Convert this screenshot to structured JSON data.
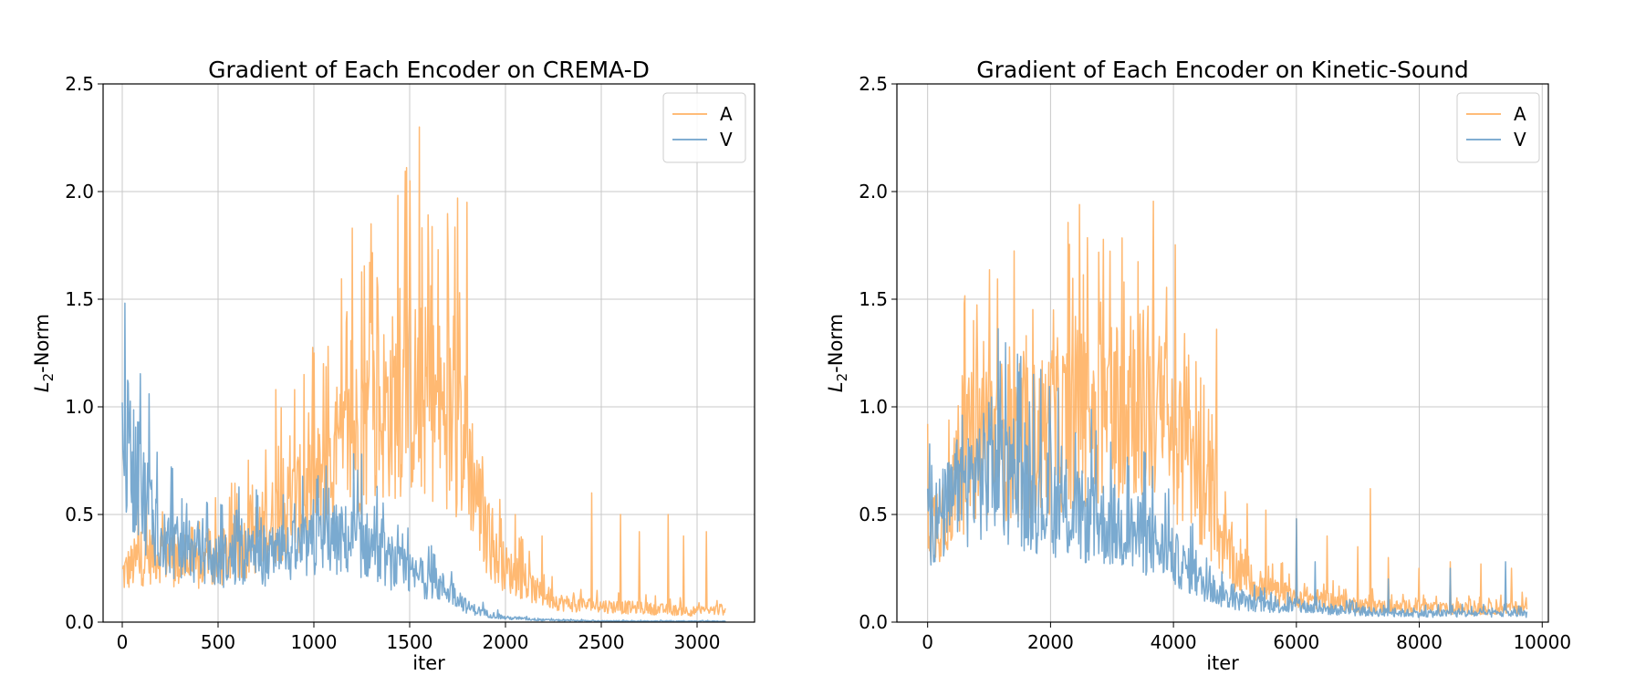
{
  "colors": {
    "A": "#ffb366",
    "V": "#6fa3cc",
    "grid": "#c8c8c8",
    "axis": "#000000"
  },
  "chart_data": [
    {
      "type": "line",
      "title": "Gradient of Each Encoder on CREMA-D",
      "xlabel": "iter",
      "ylabel_main": "L",
      "ylabel_sub": "2",
      "ylabel_rest": "-Norm",
      "xlim": [
        -100,
        3300
      ],
      "ylim": [
        0,
        2.5
      ],
      "xticks": [
        0,
        500,
        1000,
        1500,
        2000,
        2500,
        3000
      ],
      "xtick_labels": [
        "0",
        "500",
        "1000",
        "1500",
        "2000",
        "2500",
        "3000"
      ],
      "yticks": [
        0,
        0.5,
        1.0,
        1.5,
        2.0,
        2.5
      ],
      "ytick_labels": [
        "0.0",
        "0.5",
        "1.0",
        "1.5",
        "2.0",
        "2.5"
      ],
      "grid": true,
      "legend_position": "top-right",
      "x_max": 3150,
      "series": [
        {
          "name": "A",
          "color": "#ffb366",
          "shape": [
            [
              0,
              0.22
            ],
            [
              100,
              0.3
            ],
            [
              200,
              0.33
            ],
            [
              300,
              0.28
            ],
            [
              400,
              0.25
            ],
            [
              500,
              0.28
            ],
            [
              600,
              0.33
            ],
            [
              700,
              0.4
            ],
            [
              800,
              0.48
            ],
            [
              900,
              0.55
            ],
            [
              1000,
              0.62
            ],
            [
              1100,
              0.7
            ],
            [
              1200,
              0.85
            ],
            [
              1300,
              0.95
            ],
            [
              1400,
              1.0
            ],
            [
              1500,
              1.05
            ],
            [
              1600,
              1.02
            ],
            [
              1700,
              0.95
            ],
            [
              1800,
              0.8
            ],
            [
              1850,
              0.6
            ],
            [
              1900,
              0.4
            ],
            [
              1950,
              0.3
            ],
            [
              2000,
              0.25
            ],
            [
              2100,
              0.18
            ],
            [
              2200,
              0.12
            ],
            [
              2300,
              0.09
            ],
            [
              2400,
              0.08
            ],
            [
              2600,
              0.07
            ],
            [
              2800,
              0.06
            ],
            [
              3000,
              0.05
            ],
            [
              3150,
              0.06
            ]
          ],
          "spikes": [
            [
              1500,
              2.05
            ],
            [
              1550,
              2.3
            ],
            [
              1600,
              1.62
            ],
            [
              1650,
              1.73
            ],
            [
              1700,
              1.7
            ],
            [
              1750,
              1.97
            ],
            [
              1800,
              1.95
            ],
            [
              1200,
              1.83
            ],
            [
              1300,
              1.85
            ],
            [
              1330,
              1.6
            ],
            [
              1450,
              1.55
            ],
            [
              1050,
              1.2
            ],
            [
              1000,
              1.25
            ],
            [
              950,
              1.15
            ],
            [
              900,
              1.08
            ],
            [
              800,
              1.08
            ],
            [
              750,
              0.8
            ],
            [
              2050,
              0.5
            ],
            [
              2190,
              0.4
            ],
            [
              2450,
              0.6
            ],
            [
              2600,
              0.5
            ],
            [
              2700,
              0.42
            ],
            [
              2850,
              0.5
            ],
            [
              2930,
              0.4
            ],
            [
              3050,
              0.42
            ]
          ]
        },
        {
          "name": "V",
          "color": "#6fa3cc",
          "shape": [
            [
              0,
              0.82
            ],
            [
              50,
              0.75
            ],
            [
              100,
              0.6
            ],
            [
              150,
              0.52
            ],
            [
              200,
              0.4
            ],
            [
              300,
              0.33
            ],
            [
              400,
              0.3
            ],
            [
              500,
              0.28
            ],
            [
              600,
              0.3
            ],
            [
              700,
              0.3
            ],
            [
              800,
              0.3
            ],
            [
              900,
              0.33
            ],
            [
              1000,
              0.35
            ],
            [
              1100,
              0.38
            ],
            [
              1200,
              0.38
            ],
            [
              1300,
              0.35
            ],
            [
              1400,
              0.27
            ],
            [
              1500,
              0.22
            ],
            [
              1600,
              0.19
            ],
            [
              1700,
              0.15
            ],
            [
              1750,
              0.12
            ],
            [
              1800,
              0.07
            ],
            [
              1900,
              0.04
            ],
            [
              2000,
              0.02
            ],
            [
              2100,
              0.015
            ],
            [
              2200,
              0.01
            ],
            [
              2500,
              0.005
            ],
            [
              3150,
              0.004
            ]
          ],
          "spikes": [
            [
              0,
              1.02
            ],
            [
              40,
              0.92
            ],
            [
              80,
              0.93
            ],
            [
              140,
              1.06
            ],
            [
              220,
              0.5
            ],
            [
              350,
              0.47
            ],
            [
              600,
              0.52
            ],
            [
              900,
              0.55
            ],
            [
              1050,
              0.62
            ],
            [
              1250,
              0.78
            ],
            [
              1330,
              0.63
            ],
            [
              1440,
              0.45
            ]
          ]
        }
      ]
    },
    {
      "type": "line",
      "title": "Gradient of Each Encoder on Kinetic-Sound",
      "xlabel": "iter",
      "ylabel_main": "L",
      "ylabel_sub": "2",
      "ylabel_rest": "-Norm",
      "xlim": [
        -500,
        10100
      ],
      "ylim": [
        0,
        2.5
      ],
      "xticks": [
        0,
        2000,
        4000,
        6000,
        8000,
        10000
      ],
      "xtick_labels": [
        "0",
        "2000",
        "4000",
        "6000",
        "8000",
        "10000"
      ],
      "yticks": [
        0,
        0.5,
        1.0,
        1.5,
        2.0,
        2.5
      ],
      "ytick_labels": [
        "0.0",
        "0.5",
        "1.0",
        "1.5",
        "2.0",
        "2.5"
      ],
      "grid": true,
      "legend_position": "top-right",
      "x_max": 9750,
      "series": [
        {
          "name": "A",
          "color": "#ffb366",
          "shape": [
            [
              0,
              0.5
            ],
            [
              100,
              0.45
            ],
            [
              200,
              0.5
            ],
            [
              400,
              0.6
            ],
            [
              600,
              0.75
            ],
            [
              800,
              0.85
            ],
            [
              1000,
              0.88
            ],
            [
              1200,
              0.85
            ],
            [
              1500,
              0.82
            ],
            [
              1800,
              0.85
            ],
            [
              2000,
              0.9
            ],
            [
              2300,
              0.93
            ],
            [
              2600,
              0.97
            ],
            [
              3000,
              1.0
            ],
            [
              3300,
              1.05
            ],
            [
              3600,
              1.0
            ],
            [
              3900,
              0.9
            ],
            [
              4200,
              0.75
            ],
            [
              4500,
              0.55
            ],
            [
              4800,
              0.38
            ],
            [
              5000,
              0.25
            ],
            [
              5300,
              0.18
            ],
            [
              5600,
              0.14
            ],
            [
              6000,
              0.12
            ],
            [
              6500,
              0.1
            ],
            [
              7000,
              0.08
            ],
            [
              7500,
              0.07
            ],
            [
              8000,
              0.07
            ],
            [
              8500,
              0.06
            ],
            [
              9000,
              0.06
            ],
            [
              9750,
              0.07
            ]
          ],
          "spikes": [
            [
              600,
              1.48
            ],
            [
              1000,
              1.25
            ],
            [
              1500,
              1.2
            ],
            [
              2000,
              1.2
            ],
            [
              2050,
              1.45
            ],
            [
              2400,
              1.42
            ],
            [
              2800,
              1.38
            ],
            [
              3200,
              1.58
            ],
            [
              3300,
              1.42
            ],
            [
              3500,
              1.35
            ],
            [
              3800,
              1.28
            ],
            [
              4100,
              1.05
            ],
            [
              4500,
              1.1
            ],
            [
              4700,
              1.36
            ],
            [
              5200,
              0.55
            ],
            [
              5500,
              0.52
            ],
            [
              6000,
              0.48
            ],
            [
              6500,
              0.4
            ],
            [
              7000,
              0.35
            ],
            [
              7200,
              0.62
            ],
            [
              7500,
              0.3
            ],
            [
              8000,
              0.25
            ],
            [
              8500,
              0.28
            ],
            [
              9000,
              0.27
            ],
            [
              9500,
              0.25
            ]
          ]
        },
        {
          "name": "V",
          "color": "#6fa3cc",
          "shape": [
            [
              0,
              0.5
            ],
            [
              100,
              0.46
            ],
            [
              200,
              0.48
            ],
            [
              400,
              0.55
            ],
            [
              600,
              0.62
            ],
            [
              800,
              0.67
            ],
            [
              1000,
              0.68
            ],
            [
              1200,
              0.65
            ],
            [
              1500,
              0.6
            ],
            [
              1800,
              0.57
            ],
            [
              2000,
              0.55
            ],
            [
              2300,
              0.5
            ],
            [
              2600,
              0.48
            ],
            [
              3000,
              0.45
            ],
            [
              3300,
              0.42
            ],
            [
              3600,
              0.38
            ],
            [
              3900,
              0.32
            ],
            [
              4200,
              0.25
            ],
            [
              4500,
              0.17
            ],
            [
              4800,
              0.12
            ],
            [
              5000,
              0.1
            ],
            [
              5500,
              0.08
            ],
            [
              6000,
              0.07
            ],
            [
              6500,
              0.06
            ],
            [
              7000,
              0.05
            ],
            [
              8000,
              0.04
            ],
            [
              9000,
              0.04
            ],
            [
              9750,
              0.04
            ]
          ],
          "spikes": [
            [
              0,
              0.62
            ],
            [
              800,
              0.85
            ],
            [
              1000,
              1.02
            ],
            [
              1300,
              0.83
            ],
            [
              2000,
              0.83
            ],
            [
              2700,
              0.67
            ],
            [
              3500,
              0.6
            ],
            [
              6000,
              0.48
            ],
            [
              6300,
              0.28
            ],
            [
              7500,
              0.2
            ],
            [
              8500,
              0.25
            ],
            [
              9400,
              0.28
            ]
          ]
        }
      ]
    }
  ]
}
